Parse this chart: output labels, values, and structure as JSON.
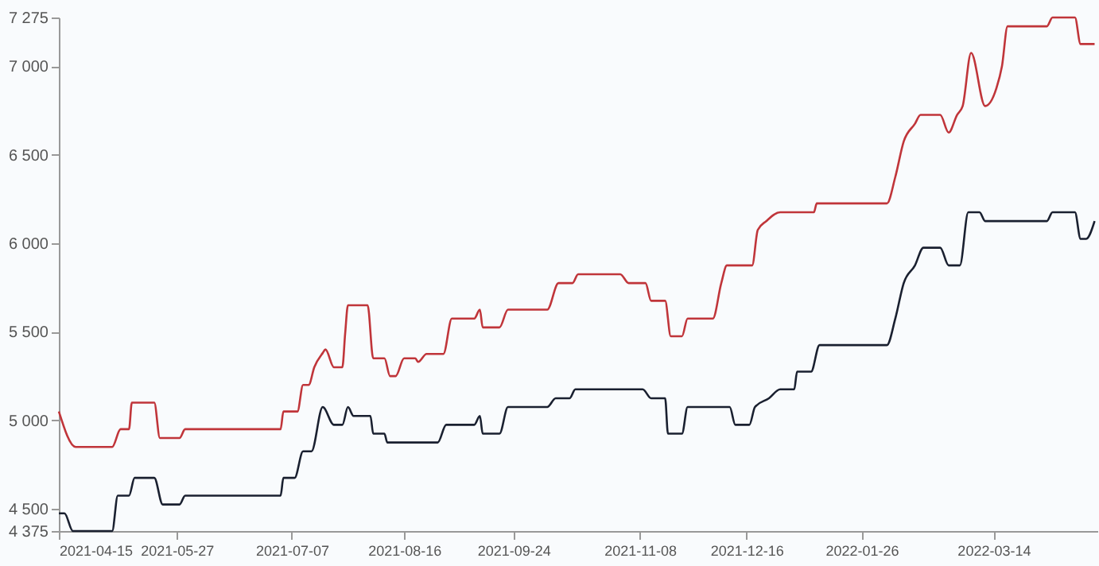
{
  "chart_data": {
    "type": "line",
    "xlim": [
      "2021-04-15",
      "2022-04-20"
    ],
    "xticks": [
      "2021-04-15",
      "2021-05-27",
      "2021-07-07",
      "2021-08-16",
      "2021-09-24",
      "2021-11-08",
      "2021-12-16",
      "2022-01-26",
      "2022-03-14"
    ],
    "ylim": [
      4375,
      7275
    ],
    "yticks": [
      {
        "value": 4375,
        "label": "4 375"
      },
      {
        "value": 4500,
        "label": "4 500"
      },
      {
        "value": 5000,
        "label": "5 000"
      },
      {
        "value": 5500,
        "label": "5 500"
      },
      {
        "value": 6000,
        "label": "6 000"
      },
      {
        "value": 6500,
        "label": "6 500"
      },
      {
        "value": 7000,
        "label": "7 000"
      },
      {
        "value": 7275,
        "label": "7 275"
      }
    ],
    "grid": false,
    "marker": "none",
    "line_style": "solid",
    "series": [
      {
        "color": "#c0353a",
        "x": [
          "2021-04-15",
          "2021-04-21",
          "2021-05-04",
          "2021-05-07",
          "2021-05-10",
          "2021-05-11",
          "2021-05-19",
          "2021-05-21",
          "2021-05-28",
          "2021-05-30",
          "2021-07-03",
          "2021-07-04",
          "2021-07-09",
          "2021-07-11",
          "2021-07-13",
          "2021-07-15",
          "2021-07-18",
          "2021-07-19",
          "2021-07-22",
          "2021-07-25",
          "2021-07-26",
          "2021-07-27",
          "2021-08-03",
          "2021-08-05",
          "2021-08-09",
          "2021-08-11",
          "2021-08-13",
          "2021-08-16",
          "2021-08-20",
          "2021-08-21",
          "2021-08-24",
          "2021-08-30",
          "2021-09-02",
          "2021-09-10",
          "2021-09-12",
          "2021-09-13",
          "2021-09-19",
          "2021-09-22",
          "2021-10-06",
          "2021-10-10",
          "2021-10-15",
          "2021-10-17",
          "2021-11-01",
          "2021-11-04",
          "2021-11-10",
          "2021-11-12",
          "2021-11-17",
          "2021-11-19",
          "2021-11-23",
          "2021-11-25",
          "2021-12-04",
          "2021-12-07",
          "2021-12-09",
          "2021-12-18",
          "2021-12-20",
          "2021-12-23",
          "2021-12-28",
          "2022-01-09",
          "2022-01-10",
          "2022-02-04",
          "2022-02-07",
          "2022-02-10",
          "2022-02-14",
          "2022-02-16",
          "2022-02-23",
          "2022-02-26",
          "2022-03-01",
          "2022-03-03",
          "2022-03-06",
          "2022-03-11",
          "2022-03-15",
          "2022-03-17",
          "2022-03-19",
          "2022-04-02",
          "2022-04-04",
          "2022-04-12",
          "2022-04-14",
          "2022-04-19"
        ],
        "values": [
          5050,
          4850,
          4850,
          4950,
          4950,
          5100,
          5100,
          4900,
          4900,
          4950,
          4950,
          5050,
          5050,
          5200,
          5200,
          5300,
          5380,
          5400,
          5300,
          5300,
          5490,
          5650,
          5650,
          5350,
          5350,
          5250,
          5250,
          5350,
          5350,
          5330,
          5375,
          5375,
          5575,
          5575,
          5625,
          5525,
          5525,
          5625,
          5625,
          5775,
          5775,
          5825,
          5825,
          5775,
          5775,
          5675,
          5675,
          5475,
          5475,
          5575,
          5575,
          5775,
          5875,
          5875,
          6075,
          6125,
          6175,
          6175,
          6225,
          6225,
          6375,
          6575,
          6675,
          6725,
          6725,
          6625,
          6725,
          6775,
          7075,
          6775,
          6875,
          7000,
          7225,
          7225,
          7275,
          7275,
          7125,
          7125
        ]
      },
      {
        "color": "#1a2030",
        "x": [
          "2021-04-15",
          "2021-04-17",
          "2021-04-20",
          "2021-05-04",
          "2021-05-06",
          "2021-05-10",
          "2021-05-12",
          "2021-05-19",
          "2021-05-22",
          "2021-05-28",
          "2021-05-30",
          "2021-07-03",
          "2021-07-04",
          "2021-07-08",
          "2021-07-11",
          "2021-07-14",
          "2021-07-18",
          "2021-07-22",
          "2021-07-25",
          "2021-07-27",
          "2021-07-29",
          "2021-08-04",
          "2021-08-05",
          "2021-08-09",
          "2021-08-10",
          "2021-08-28",
          "2021-08-31",
          "2021-09-10",
          "2021-09-12",
          "2021-09-13",
          "2021-09-19",
          "2021-09-22",
          "2021-10-06",
          "2021-10-09",
          "2021-10-14",
          "2021-10-16",
          "2021-11-09",
          "2021-11-12",
          "2021-11-17",
          "2021-11-18",
          "2021-11-23",
          "2021-11-25",
          "2021-12-10",
          "2021-12-12",
          "2021-12-17",
          "2021-12-19",
          "2021-12-24",
          "2021-12-28",
          "2022-01-02",
          "2022-01-03",
          "2022-01-08",
          "2022-01-11",
          "2022-02-04",
          "2022-02-07",
          "2022-02-10",
          "2022-02-14",
          "2022-02-17",
          "2022-02-23",
          "2022-02-26",
          "2022-03-02",
          "2022-03-05",
          "2022-03-09",
          "2022-03-11",
          "2022-04-02",
          "2022-04-04",
          "2022-04-12",
          "2022-04-14",
          "2022-04-16",
          "2022-04-19"
        ],
        "values": [
          4475,
          4475,
          4375,
          4375,
          4575,
          4575,
          4675,
          4675,
          4525,
          4525,
          4575,
          4575,
          4675,
          4675,
          4825,
          4825,
          5075,
          4975,
          4975,
          5075,
          5025,
          5025,
          4925,
          4925,
          4875,
          4875,
          4975,
          4975,
          5025,
          4925,
          4925,
          5075,
          5075,
          5125,
          5125,
          5175,
          5175,
          5125,
          5125,
          4925,
          4925,
          5075,
          5075,
          4975,
          4975,
          5075,
          5125,
          5175,
          5175,
          5275,
          5275,
          5425,
          5425,
          5575,
          5775,
          5875,
          5975,
          5975,
          5875,
          5875,
          6175,
          6175,
          6125,
          6125,
          6175,
          6175,
          6025,
          6025,
          6125
        ]
      }
    ]
  }
}
